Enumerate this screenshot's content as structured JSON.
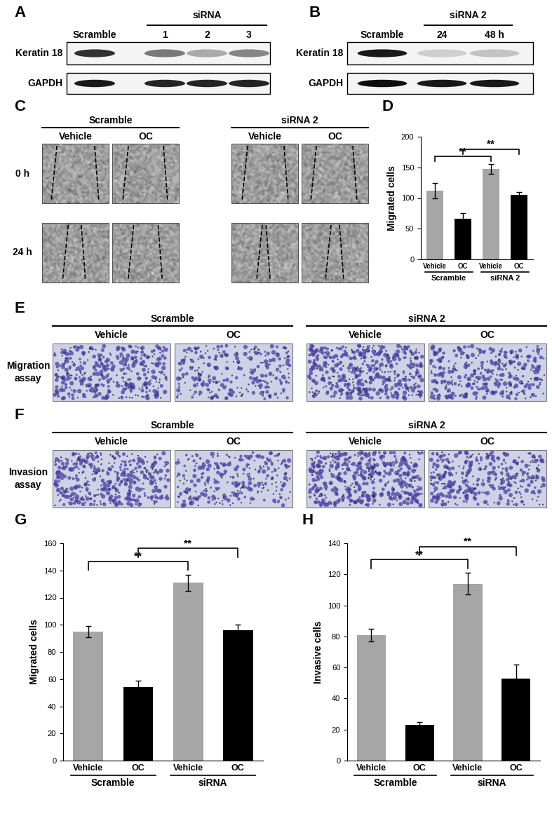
{
  "blot_A": {
    "label": "A",
    "lanes": [
      "Scramble",
      "1",
      "2",
      "3"
    ],
    "group": "siRNA",
    "rows": [
      "Keratin 18",
      "GAPDH"
    ]
  },
  "blot_B": {
    "label": "B",
    "lanes": [
      "Scramble",
      "24",
      "48 h"
    ],
    "group": "siRNA 2",
    "rows": [
      "Keratin 18",
      "GAPDH"
    ]
  },
  "wound_C": {
    "label": "C",
    "groups": [
      "Scramble",
      "siRNA 2"
    ],
    "treatments": [
      "Vehicle",
      "OC"
    ],
    "rows": [
      "0 h",
      "24 h"
    ]
  },
  "transwell_E": {
    "label": "E",
    "groups": [
      "Scramble",
      "siRNA 2"
    ],
    "treatments": [
      "Vehicle",
      "OC"
    ],
    "row": "Migration assay"
  },
  "transwell_F": {
    "label": "F",
    "groups": [
      "Scramble",
      "siRNA 2"
    ],
    "treatments": [
      "Vehicle",
      "OC"
    ],
    "row": "Invasion assay"
  },
  "chart_data": [
    {
      "type": "bar",
      "label": "D",
      "y_label": "Migrated cells",
      "categories": [
        "Vehicle",
        "OC",
        "Vehicle",
        "OC"
      ],
      "groups": [
        "Scramble",
        "siRNA 2"
      ],
      "values": [
        112,
        66,
        148,
        105
      ],
      "errors": [
        13,
        9,
        8,
        5
      ],
      "colors": [
        "#a6a6a6",
        "#000000",
        "#a6a6a6",
        "#000000"
      ],
      "ylim": [
        0,
        200
      ],
      "yticks": [
        0,
        50,
        100,
        150,
        200
      ],
      "annotations": [
        {
          "text": "**",
          "between": [
            0,
            2
          ]
        },
        {
          "text": "**",
          "between": [
            1,
            3
          ]
        }
      ]
    },
    {
      "type": "bar",
      "label": "G",
      "y_label": "Migrated cells",
      "categories": [
        "Vehicle",
        "OC",
        "Vehicle",
        "OC"
      ],
      "groups": [
        "Scramble",
        "siRNA"
      ],
      "values": [
        95,
        54,
        131,
        96
      ],
      "errors": [
        4,
        5,
        6,
        4
      ],
      "colors": [
        "#a6a6a6",
        "#000000",
        "#a6a6a6",
        "#000000"
      ],
      "ylim": [
        0,
        160
      ],
      "yticks": [
        0,
        20,
        40,
        60,
        80,
        100,
        120,
        140,
        160
      ],
      "annotations": [
        {
          "text": "**",
          "between": [
            0,
            2
          ]
        },
        {
          "text": "**",
          "between": [
            1,
            3
          ]
        }
      ]
    },
    {
      "type": "bar",
      "label": "H",
      "y_label": "Invasive cells",
      "categories": [
        "Vehicle",
        "OC",
        "Vehicle",
        "OC"
      ],
      "groups": [
        "Scramble",
        "siRNA"
      ],
      "values": [
        81,
        23,
        114,
        53
      ],
      "errors": [
        4,
        2,
        7,
        9
      ],
      "colors": [
        "#a6a6a6",
        "#000000",
        "#a6a6a6",
        "#000000"
      ],
      "ylim": [
        0,
        140
      ],
      "yticks": [
        0,
        20,
        40,
        60,
        80,
        100,
        120,
        140
      ],
      "annotations": [
        {
          "text": "**",
          "between": [
            0,
            2
          ]
        },
        {
          "text": "**",
          "between": [
            1,
            3
          ]
        }
      ]
    }
  ]
}
